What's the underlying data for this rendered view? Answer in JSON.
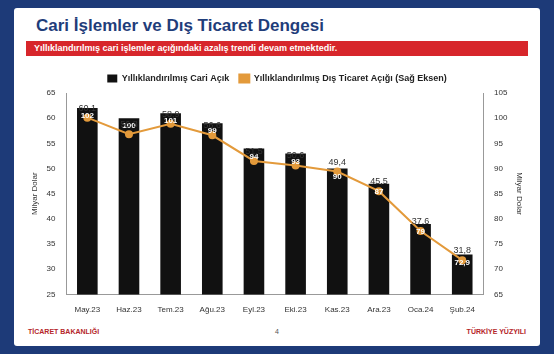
{
  "chart_data": {
    "type": "bar",
    "title": "Cari İşlemler ve Dış Ticaret Dengesi",
    "subtitle": "Yıllıklandırılmış cari işlemler açığındaki azalış trendi devam etmektedir.",
    "ylabel": "Milyar Dolar",
    "y2label": "Milyar Dolar",
    "categories": [
      "May.23",
      "Haz.23",
      "Tem.23",
      "Ağu.23",
      "Eyl.23",
      "Eki.23",
      "Kas.23",
      "Ara.23",
      "Oca.24",
      "Şub.24"
    ],
    "series": [
      {
        "name": "Yıllıklandırılmış Cari Açık",
        "type": "bar",
        "color": "#111111",
        "axis": "y2",
        "values": [
          102,
          100,
          101,
          99,
          94,
          93,
          90,
          87,
          79,
          72.9
        ],
        "value_labels": [
          "102",
          "100",
          "101",
          "99",
          "94",
          "93",
          "90",
          "87",
          "79",
          "72,9"
        ]
      },
      {
        "name": "Yıllıklandırılmış Dış Ticaret Açığı (Sağ Eksen)",
        "type": "line",
        "color": "#e39a3b",
        "marker": "circle",
        "values": [
          60.1,
          56.8,
          58.9,
          56.6,
          51.5,
          50.6,
          49.4,
          45.5,
          37.6,
          31.8
        ],
        "value_labels": [
          "60,1",
          "56,8",
          "58,9",
          "56,6",
          "51,5",
          "50,6",
          "49,4",
          "45,5",
          "37,6",
          "31,8"
        ]
      }
    ],
    "ylim": [
      25,
      65
    ],
    "yticks": [
      25,
      30,
      35,
      40,
      45,
      50,
      55,
      60,
      65
    ],
    "y2lim": [
      65,
      105
    ],
    "y2ticks": [
      65,
      70,
      75,
      80,
      85,
      90,
      95,
      100,
      105
    ],
    "grid": false,
    "legend": "top",
    "data_labels": true,
    "footer": {
      "left": "TİCARET BAKANLIĞI",
      "page": "4",
      "right": "TÜRKİYE YÜZYILI"
    }
  }
}
